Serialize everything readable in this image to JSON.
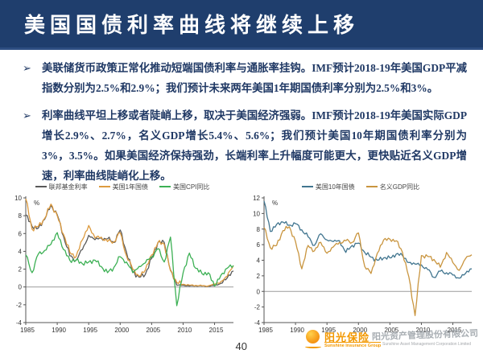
{
  "slide": {
    "title": "美国国债利率曲线将继续上移"
  },
  "bullets": [
    {
      "marker": "➢",
      "lead": "美联储货币政策正常化推动短端国债利率与通胀率挂钩。",
      "rest": "IMF预计2018-19年美国GDP平减指数分别为2.5%和2.9%；我们预计未来两年美国1年期国债利率分别为2.5%和3%。"
    },
    {
      "marker": "➢",
      "lead": "利率曲线平坦上移或者陡峭上移，取决于美国经济强弱。",
      "rest": "IMF预计2018-19年美国实际GDP增长2.9%、2.7%，名义GDP增长5.4%、5.6%；我们预计美国10年期国债利率分别为3%，3.5%。如果美国经济保持强劲，长端利率上升幅度可能更大，更快贴近名义GDP增速，利率曲线陡峭化上移。"
    }
  ],
  "footer": {
    "page_number": "40",
    "logo": {
      "icon": "sun-icon",
      "cn_left": "阳光保险",
      "en_left": "Sunshine Insurance Group",
      "cn_right": "阳光资产管理股份有限公司",
      "en_right": "Sunshine Asset Management Corporation Limited",
      "accent_color": "#f39800"
    }
  },
  "colors": {
    "title_bar": "#1f3e6d",
    "body_text": "#1f3864",
    "fed_funds": "#595959",
    "treasury_1y": "#dd9b3f",
    "cpi": "#3cb054",
    "treasury_10y": "#41758f",
    "nominal_gdp": "#c9953f",
    "watermark_gray": "#9aa0a6"
  },
  "chart_data": [
    {
      "type": "line",
      "unit_label": "%",
      "ylim": [
        -4,
        10
      ],
      "ytick_step": 2,
      "xticks": [
        1985,
        1990,
        1995,
        2000,
        2005,
        2010,
        2015
      ],
      "zero_line": true,
      "legend_position": "top",
      "x": [
        1985,
        1986,
        1987,
        1988,
        1989,
        1990,
        1991,
        1992,
        1993,
        1994,
        1995,
        1996,
        1997,
        1998,
        1999,
        2000,
        2001,
        2002,
        2003,
        2004,
        2005,
        2006,
        2007,
        2008,
        2009,
        2010,
        2011,
        2012,
        2013,
        2014,
        2015,
        2016,
        2017,
        2018
      ],
      "series": [
        {
          "name": "联邦基金利率",
          "color": "#595959",
          "values": [
            8.1,
            6.8,
            6.6,
            7.6,
            9.2,
            8.1,
            5.7,
            3.5,
            3.0,
            4.2,
            5.8,
            5.3,
            5.5,
            5.4,
            5.0,
            6.4,
            3.9,
            1.7,
            1.1,
            1.4,
            3.2,
            5.0,
            5.0,
            1.9,
            0.2,
            0.2,
            0.1,
            0.15,
            0.1,
            0.1,
            0.15,
            0.4,
            1.0,
            1.8
          ]
        },
        {
          "name": "美国1年国债",
          "color": "#dd9b3f",
          "values": [
            9.9,
            6.5,
            6.8,
            7.7,
            9.3,
            8.0,
            5.9,
            3.9,
            3.4,
            5.3,
            6.9,
            5.5,
            5.6,
            5.1,
            5.1,
            6.1,
            3.5,
            2.0,
            1.2,
            1.9,
            3.6,
            5.0,
            4.8,
            1.8,
            0.5,
            0.3,
            0.2,
            0.17,
            0.13,
            0.12,
            0.3,
            0.6,
            1.2,
            2.4
          ]
        },
        {
          "name": "美国CPI同比",
          "color": "#3cb054",
          "values": [
            3.6,
            1.6,
            3.7,
            4.1,
            4.8,
            6.1,
            4.2,
            3.0,
            3.0,
            2.6,
            2.8,
            3.0,
            2.3,
            1.6,
            2.2,
            3.4,
            2.8,
            1.6,
            2.3,
            2.7,
            3.4,
            4.3,
            2.8,
            5.6,
            -2.1,
            1.6,
            3.8,
            2.1,
            1.5,
            1.6,
            0.1,
            1.3,
            2.1,
            2.4
          ]
        }
      ]
    },
    {
      "type": "line",
      "unit_label": "%",
      "ylim": [
        -4,
        12
      ],
      "ytick_step": 2,
      "xticks": [
        1985,
        1990,
        1995,
        2000,
        2005,
        2010,
        2015
      ],
      "zero_line": true,
      "legend_position": "top",
      "x": [
        1985,
        1986,
        1987,
        1988,
        1989,
        1990,
        1991,
        1992,
        1993,
        1994,
        1995,
        1996,
        1997,
        1998,
        1999,
        2000,
        2001,
        2002,
        2003,
        2004,
        2005,
        2006,
        2007,
        2008,
        2009,
        2010,
        2011,
        2012,
        2013,
        2014,
        2015,
        2016,
        2017,
        2018
      ],
      "series": [
        {
          "name": "美国10年国债",
          "color": "#41758f",
          "values": [
            11.6,
            7.7,
            8.6,
            8.9,
            8.5,
            8.7,
            7.9,
            7.0,
            5.9,
            7.4,
            6.6,
            6.4,
            6.5,
            5.0,
            5.9,
            6.2,
            5.0,
            4.4,
            4.0,
            4.3,
            4.3,
            4.8,
            4.6,
            3.7,
            3.5,
            3.4,
            2.8,
            1.8,
            2.6,
            2.4,
            2.1,
            1.7,
            2.3,
            2.9
          ]
        },
        {
          "name": "名义GDP同比",
          "color": "#c9953f",
          "values": [
            8.2,
            5.6,
            5.9,
            7.8,
            8.3,
            6.4,
            2.9,
            5.9,
            5.2,
            6.3,
            4.9,
            5.7,
            6.3,
            6.5,
            6.3,
            7.5,
            3.2,
            2.3,
            4.9,
            6.6,
            6.7,
            6.5,
            5.0,
            1.9,
            -3.1,
            4.6,
            4.5,
            4.1,
            3.1,
            5.0,
            3.7,
            2.7,
            4.2,
            4.7
          ]
        }
      ]
    }
  ]
}
